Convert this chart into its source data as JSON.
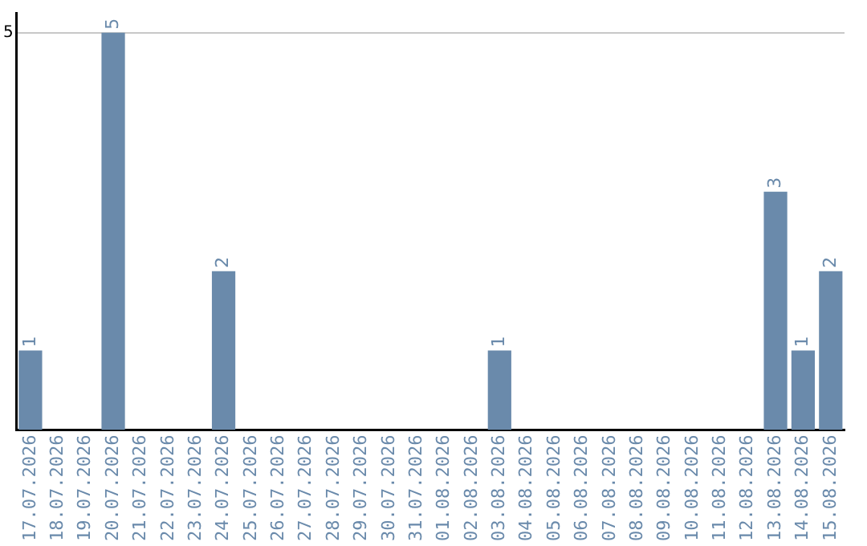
{
  "chart_data": {
    "type": "bar",
    "categories": [
      "17.07.2026",
      "18.07.2026",
      "19.07.2026",
      "20.07.2026",
      "21.07.2026",
      "22.07.2026",
      "23.07.2026",
      "24.07.2026",
      "25.07.2026",
      "26.07.2026",
      "27.07.2026",
      "28.07.2026",
      "29.07.2026",
      "30.07.2026",
      "31.07.2026",
      "01.08.2026",
      "02.08.2026",
      "03.08.2026",
      "04.08.2026",
      "05.08.2026",
      "06.08.2026",
      "07.08.2026",
      "08.08.2026",
      "09.08.2026",
      "10.08.2026",
      "11.08.2026",
      "12.08.2026",
      "13.08.2026",
      "14.08.2026",
      "15.08.2026"
    ],
    "values": [
      1,
      0,
      0,
      5,
      0,
      0,
      0,
      2,
      0,
      0,
      0,
      0,
      0,
      0,
      0,
      0,
      0,
      1,
      0,
      0,
      0,
      0,
      0,
      0,
      0,
      0,
      0,
      3,
      1,
      2
    ],
    "value_labels": [
      "1",
      null,
      null,
      "5",
      null,
      null,
      null,
      "2",
      null,
      null,
      null,
      null,
      null,
      null,
      null,
      null,
      null,
      "1",
      null,
      null,
      null,
      null,
      null,
      null,
      null,
      null,
      null,
      "3",
      "1",
      "2"
    ],
    "color": "#6a8aab",
    "ylim": [
      0,
      5.25
    ],
    "yticks": [
      5
    ],
    "grid": "y"
  }
}
